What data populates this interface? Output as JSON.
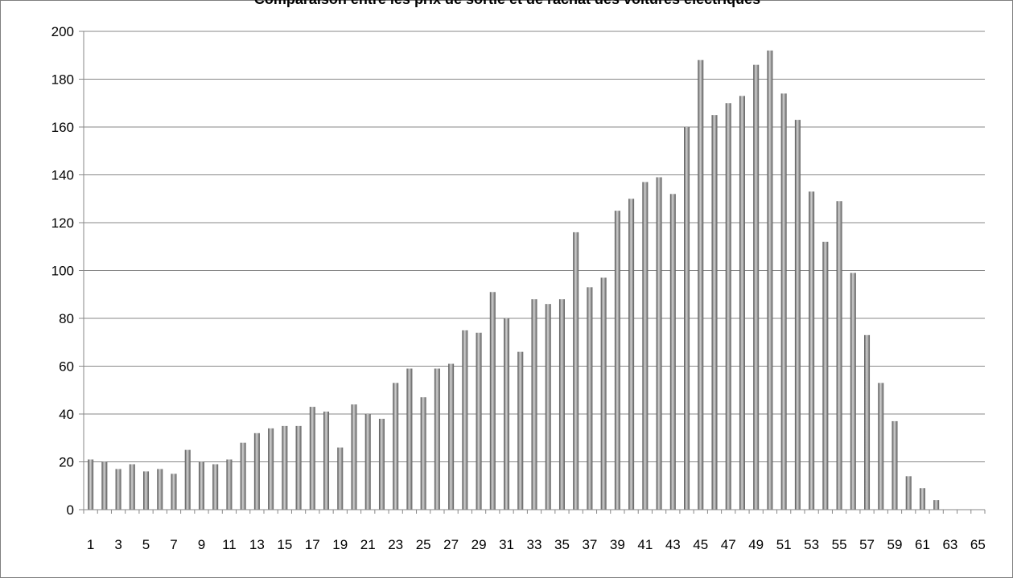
{
  "chart_data": {
    "type": "bar",
    "title": "Comparaison entre les prix de sortie et de rachat des voitures électriques",
    "xlabel": "",
    "ylabel": "",
    "ylim": [
      0,
      200
    ],
    "y_ticks": [
      0,
      20,
      40,
      60,
      80,
      100,
      120,
      140,
      160,
      180,
      200
    ],
    "y_tick_labels": [
      "0",
      "20",
      "40",
      "60",
      "80",
      "100",
      "120",
      "140",
      "160",
      "180",
      "200"
    ],
    "grid": true,
    "legend": "none",
    "categories": [
      "1",
      "2",
      "3",
      "4",
      "5",
      "6",
      "7",
      "8",
      "9",
      "10",
      "11",
      "12",
      "13",
      "14",
      "15",
      "16",
      "17",
      "18",
      "19",
      "20",
      "21",
      "22",
      "23",
      "24",
      "25",
      "26",
      "27",
      "28",
      "29",
      "30",
      "31",
      "32",
      "33",
      "34",
      "35",
      "36",
      "37",
      "38",
      "39",
      "40",
      "41",
      "42",
      "43",
      "44",
      "45",
      "46",
      "47",
      "48",
      "49",
      "50",
      "51",
      "52",
      "53",
      "54",
      "55",
      "56",
      "57",
      "58",
      "59",
      "60",
      "61",
      "62",
      "63",
      "64",
      "65"
    ],
    "x_tick_labels": [
      "1",
      "3",
      "5",
      "7",
      "9",
      "11",
      "13",
      "15",
      "17",
      "19",
      "21",
      "23",
      "25",
      "27",
      "29",
      "31",
      "33",
      "35",
      "37",
      "39",
      "41",
      "43",
      "45",
      "47",
      "49",
      "51",
      "53",
      "55",
      "57",
      "59",
      "61",
      "63",
      "65"
    ],
    "values": [
      21,
      20,
      17,
      19,
      16,
      17,
      15,
      25,
      20,
      19,
      21,
      28,
      32,
      34,
      35,
      35,
      43,
      41,
      26,
      44,
      40,
      38,
      53,
      59,
      47,
      59,
      61,
      75,
      74,
      91,
      80,
      66,
      88,
      86,
      88,
      116,
      93,
      97,
      125,
      130,
      137,
      139,
      132,
      160,
      188,
      165,
      170,
      173,
      186,
      192,
      174,
      163,
      133,
      112,
      129,
      99,
      73,
      53,
      37,
      14,
      9,
      4,
      0,
      0,
      0
    ],
    "colors": {
      "bar_dark": "#555555",
      "bar_light": "#d6d6d6",
      "grid": "#878787"
    }
  }
}
